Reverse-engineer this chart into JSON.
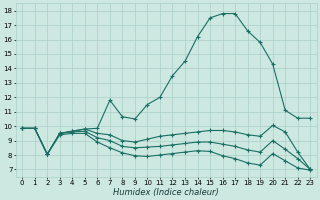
{
  "xlabel": "Humidex (Indice chaleur)",
  "bg_color": "#cce8e0",
  "grid_color": "#aacfc8",
  "line_color": "#1a6e64",
  "x_ticks": [
    0,
    1,
    2,
    3,
    4,
    5,
    6,
    7,
    8,
    9,
    10,
    11,
    12,
    13,
    14,
    15,
    16,
    17,
    18,
    19,
    20,
    21,
    22,
    23
  ],
  "y_ticks": [
    7,
    8,
    9,
    10,
    11,
    12,
    13,
    14,
    15,
    16,
    17,
    18
  ],
  "xlim": [
    -0.5,
    23.5
  ],
  "ylim": [
    6.5,
    18.5
  ],
  "lines": [
    {
      "x": [
        0,
        1,
        2,
        3,
        4,
        5,
        6,
        7,
        8,
        9,
        10,
        11,
        12,
        13,
        14,
        15,
        16,
        17,
        18,
        19,
        20,
        21,
        22,
        23
      ],
      "y": [
        9.85,
        9.85,
        8.05,
        9.5,
        9.65,
        9.8,
        9.85,
        11.8,
        10.65,
        10.5,
        11.5,
        12.0,
        13.5,
        14.5,
        16.2,
        17.5,
        17.8,
        17.8,
        16.6,
        15.8,
        14.3,
        11.1,
        10.55,
        10.55
      ]
    },
    {
      "x": [
        0,
        1,
        2,
        3,
        4,
        5,
        6,
        7,
        8,
        9,
        10,
        11,
        12,
        13,
        14,
        15,
        16,
        17,
        18,
        19,
        20,
        21,
        22,
        23
      ],
      "y": [
        9.85,
        9.85,
        8.05,
        9.5,
        9.65,
        9.8,
        9.5,
        9.4,
        9.0,
        8.9,
        9.1,
        9.3,
        9.4,
        9.5,
        9.6,
        9.7,
        9.7,
        9.6,
        9.4,
        9.3,
        10.05,
        9.6,
        8.2,
        7.0
      ]
    },
    {
      "x": [
        0,
        1,
        2,
        3,
        4,
        5,
        6,
        7,
        8,
        9,
        10,
        11,
        12,
        13,
        14,
        15,
        16,
        17,
        18,
        19,
        20,
        21,
        22,
        23
      ],
      "y": [
        9.85,
        9.85,
        8.05,
        9.5,
        9.6,
        9.65,
        9.2,
        9.0,
        8.6,
        8.5,
        8.55,
        8.6,
        8.7,
        8.8,
        8.9,
        8.9,
        8.75,
        8.6,
        8.35,
        8.2,
        9.0,
        8.4,
        7.75,
        7.0
      ]
    },
    {
      "x": [
        0,
        1,
        2,
        3,
        4,
        5,
        6,
        7,
        8,
        9,
        10,
        11,
        12,
        13,
        14,
        15,
        16,
        17,
        18,
        19,
        20,
        21,
        22,
        23
      ],
      "y": [
        9.85,
        9.85,
        8.05,
        9.4,
        9.5,
        9.5,
        8.9,
        8.5,
        8.15,
        7.95,
        7.9,
        8.0,
        8.1,
        8.2,
        8.3,
        8.25,
        7.95,
        7.75,
        7.45,
        7.3,
        8.1,
        7.6,
        7.1,
        6.95
      ]
    }
  ]
}
